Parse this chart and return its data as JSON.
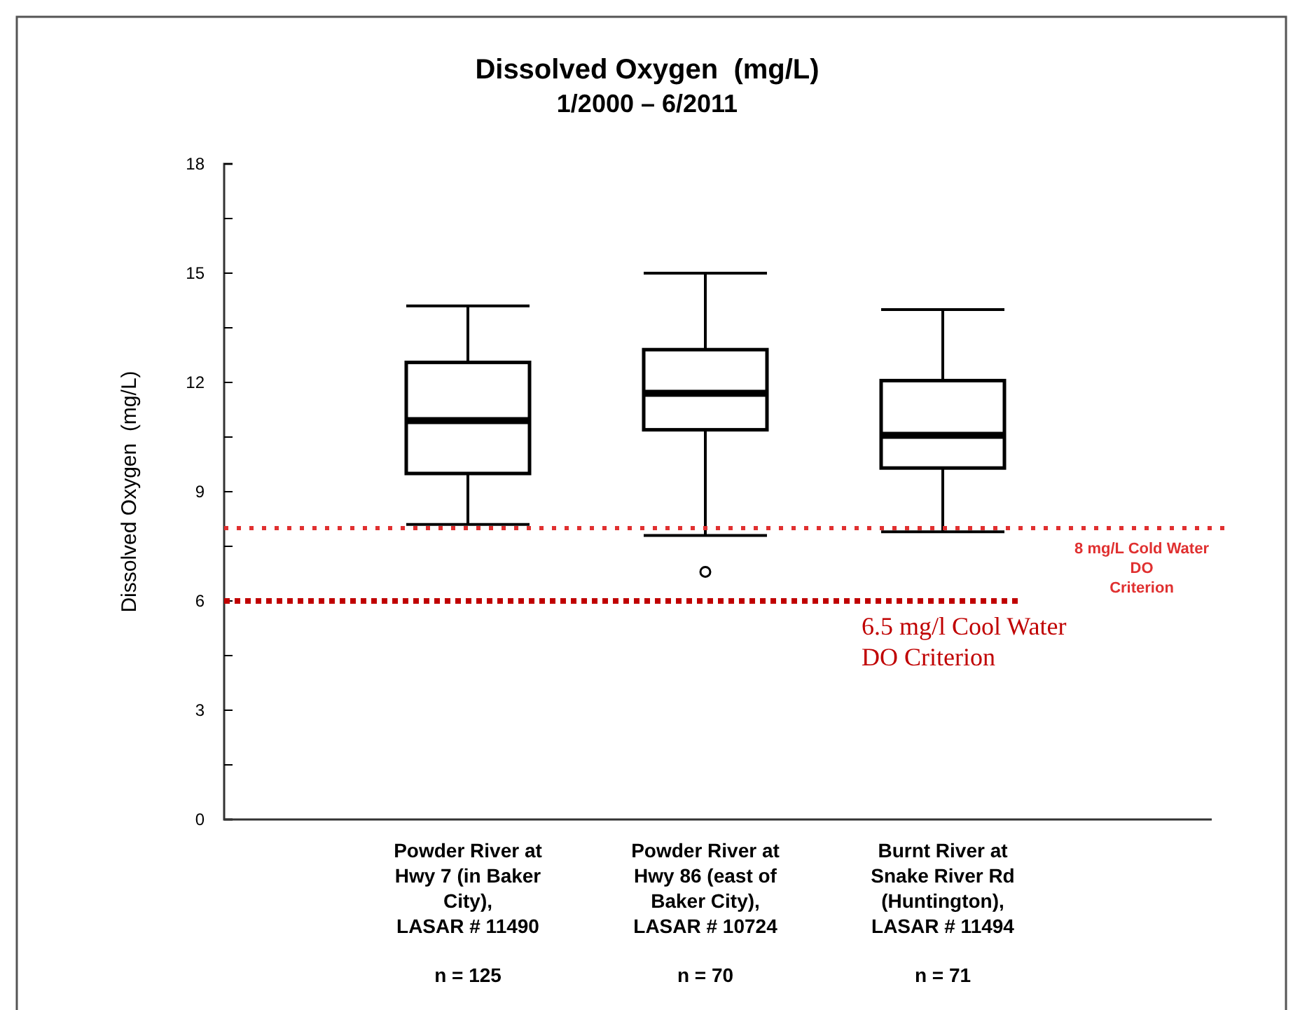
{
  "chart_data": {
    "type": "box",
    "title": "Dissolved Oxygen  (mg/L)",
    "subtitle": "1/2000 – 6/2011",
    "ylabel": "Dissolved Oxygen  (mg/L)",
    "categories": [
      "Powder River at Hwy 7 (in Baker City), LASAR # 11490",
      "Powder River at Hwy 86 (east of Baker City), LASAR # 10724",
      "Burnt River at Snake River Rd (Huntington), LASAR # 11494"
    ],
    "boxes": [
      {
        "low": 8.1,
        "q1": 9.5,
        "median": 10.95,
        "q3": 12.55,
        "high": 14.1
      },
      {
        "low": 7.8,
        "q1": 10.7,
        "median": 11.7,
        "q3": 12.9,
        "high": 15.0,
        "outliers": [
          6.8
        ]
      },
      {
        "low": 7.9,
        "q1": 9.65,
        "median": 10.55,
        "q3": 12.05,
        "high": 14.0
      }
    ],
    "ylim": [
      0,
      18
    ],
    "yticks": [
      0,
      {
        "value": 1.5,
        "label": null
      },
      3,
      {
        "value": 4.5,
        "label": null
      },
      6,
      {
        "value": 7.5,
        "label": null
      },
      9,
      {
        "value": 10.5,
        "label": null
      },
      12,
      {
        "value": 13.5,
        "label": null
      },
      15,
      {
        "value": 16.5,
        "label": null
      },
      18
    ],
    "ref_lines": [
      {
        "axis": "y",
        "value": 8,
        "label": "8 mg/L  Cold Water DO Criterion",
        "color": "#e03030",
        "line_style": "dotted"
      },
      {
        "axis": "y",
        "value": 6,
        "label": "6.5 mg/l Cool Water DO Criterion",
        "color": "#c00000",
        "line_style": "dotted"
      }
    ],
    "annotations": [
      "n = 125",
      "n = 70",
      "n = 71"
    ],
    "grid": false
  }
}
